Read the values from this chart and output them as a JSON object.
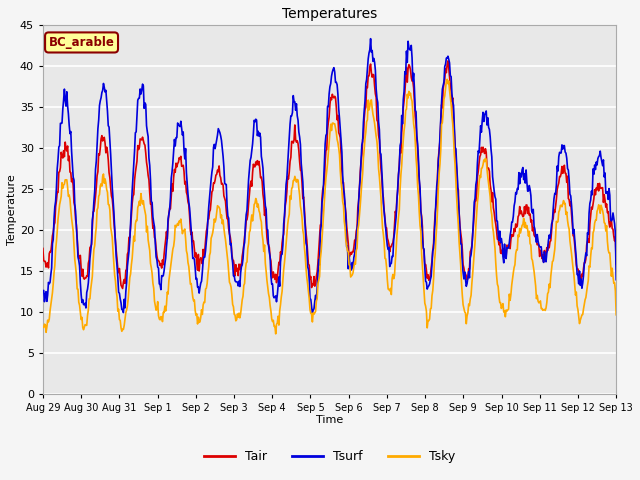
{
  "title": "Temperatures",
  "xlabel": "Time",
  "ylabel": "Temperature",
  "ylim": [
    0,
    45
  ],
  "yticks": [
    0,
    5,
    10,
    15,
    20,
    25,
    30,
    35,
    40,
    45
  ],
  "xtick_labels": [
    "Aug 29",
    "Aug 30",
    "Aug 31",
    "Sep 1",
    "Sep 2",
    "Sep 3",
    "Sep 4",
    "Sep 5",
    "Sep 6",
    "Sep 7",
    "Sep 8",
    "Sep 9",
    "Sep 10",
    "Sep 11",
    "Sep 12",
    "Sep 13"
  ],
  "line_colors": {
    "Tair": "#dd0000",
    "Tsurf": "#0000dd",
    "Tsky": "#ffaa00"
  },
  "line_width": 1.2,
  "annotation_text": "BC_arable",
  "annotation_bg": "#ffff99",
  "annotation_border": "#8b0000",
  "fig_bg": "#f5f5f5",
  "plot_bg": "#e8e8e8",
  "grid_color": "#ffffff",
  "n_days": 15,
  "n_pts_per_day": 48
}
